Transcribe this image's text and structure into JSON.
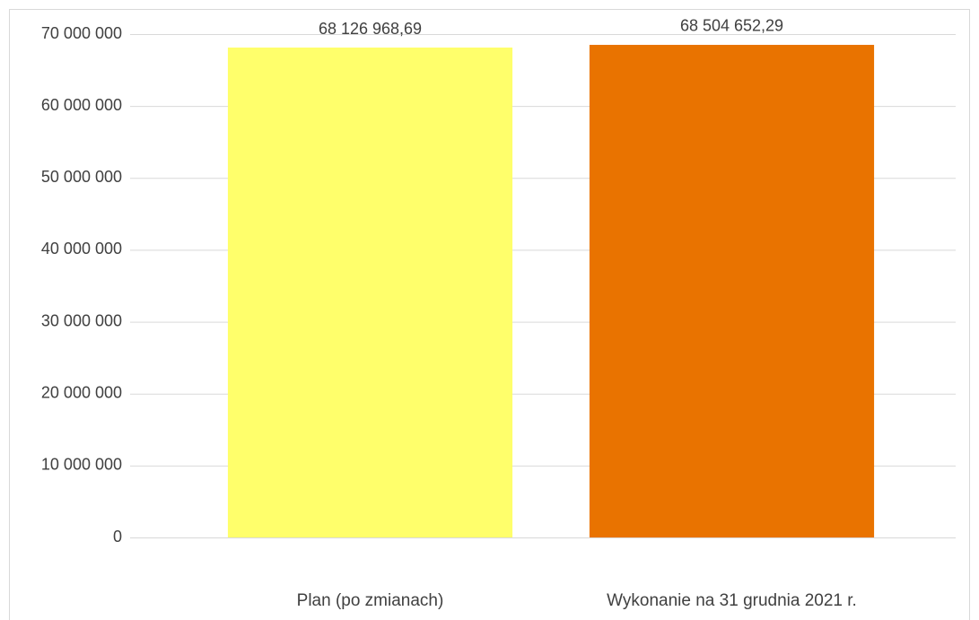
{
  "chart_data": {
    "type": "bar",
    "categories": [
      "Plan (po zmianach)",
      "Wykonanie na 31 grudnia 2021 r."
    ],
    "values": [
      68126968.69,
      68504652.29
    ],
    "value_labels": [
      "68 126 968,69",
      "68 504 652,29"
    ],
    "colors": [
      "#ffff6b",
      "#e97300"
    ],
    "ylim": [
      0,
      70000000
    ],
    "yticks": [
      0,
      {
        "value": 10000000,
        "label": "10 000 000"
      },
      {
        "value": 20000000,
        "label": "20 000 000"
      },
      {
        "value": 30000000,
        "label": "30 000 000"
      },
      {
        "value": 40000000,
        "label": "40 000 000"
      },
      {
        "value": 50000000,
        "label": "50 000 000"
      },
      {
        "value": 60000000,
        "label": "60 000 000"
      },
      {
        "value": 70000000,
        "label": "70 000 000"
      }
    ],
    "grid": true
  }
}
